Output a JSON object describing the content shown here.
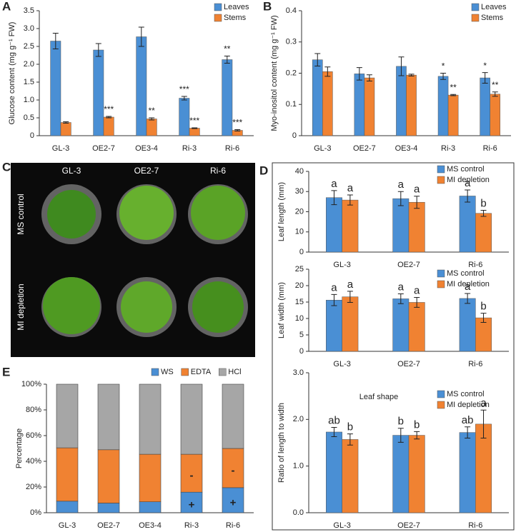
{
  "chart_data": [
    {
      "type": "bar",
      "panel": "A",
      "ylabel": "Glucose content (mg g⁻¹ FW)",
      "categories": [
        "GL-3",
        "OE2-7",
        "OE3-4",
        "Ri-3",
        "Ri-6"
      ],
      "series": [
        {
          "name": "Leaves",
          "color": "#4a8fd4",
          "values": [
            2.65,
            2.4,
            2.77,
            1.05,
            2.13
          ],
          "errors": [
            0.22,
            0.18,
            0.27,
            0.05,
            0.1
          ],
          "annotations": [
            null,
            null,
            null,
            "***",
            "**"
          ]
        },
        {
          "name": "Stems",
          "color": "#f08232",
          "values": [
            0.37,
            0.52,
            0.47,
            0.21,
            0.15
          ],
          "errors": [
            0.02,
            0.02,
            0.03,
            0.01,
            0.02
          ],
          "annotations": [
            null,
            "***",
            "**",
            "***",
            "***"
          ]
        }
      ],
      "ylim": [
        0,
        3.5
      ],
      "yticks": [
        0,
        0.5,
        {
          "value": 1,
          "label": "1.0"
        },
        1.5,
        {
          "value": 2,
          "label": "2.0"
        },
        2.5,
        {
          "value": 3,
          "label": "3.0"
        },
        3.5
      ],
      "legend": "upper right"
    },
    {
      "type": "bar",
      "panel": "B",
      "ylabel": "Myo-inositol content (mg g⁻¹ FW)",
      "categories": [
        "GL-3",
        "OE2-7",
        "OE3-4",
        "Ri-3",
        "Ri-6"
      ],
      "series": [
        {
          "name": "Leaves",
          "color": "#4a8fd4",
          "values": [
            0.243,
            0.198,
            0.222,
            0.19,
            0.185
          ],
          "errors": [
            0.02,
            0.02,
            0.03,
            0.01,
            0.017
          ],
          "annotations": [
            null,
            null,
            null,
            "*",
            "*"
          ]
        },
        {
          "name": "Stems",
          "color": "#f08232",
          "values": [
            0.205,
            0.185,
            0.194,
            0.13,
            0.133
          ],
          "errors": [
            0.015,
            0.01,
            0.003,
            0.002,
            0.007
          ],
          "annotations": [
            null,
            null,
            null,
            "**",
            "**"
          ]
        }
      ],
      "ylim": [
        0,
        0.4
      ],
      "yticks": [
        0,
        0.1,
        0.2,
        0.3,
        0.4
      ],
      "legend": "upper right"
    },
    {
      "type": "bar",
      "panel": "D",
      "ylabel": "Leaf  length (mm)",
      "categories": [
        "GL-3",
        "OE2-7",
        "Ri-6"
      ],
      "series": [
        {
          "name": "MS control",
          "color": "#4a8fd4",
          "values": [
            27,
            26.5,
            27.8
          ],
          "errors": [
            3.5,
            3.5,
            3
          ],
          "annotations": [
            "a",
            "a",
            "a"
          ]
        },
        {
          "name": "MI depletion",
          "color": "#f08232",
          "values": [
            25.8,
            24.7,
            19.2
          ],
          "errors": [
            2.5,
            3,
            1.5
          ],
          "annotations": [
            "a",
            "a",
            "b"
          ]
        }
      ],
      "ylim": [
        0,
        40
      ],
      "yticks": [
        0,
        10,
        20,
        30,
        40
      ],
      "legend": "upper right"
    },
    {
      "type": "bar",
      "ylabel": "Leaf width (mm)",
      "categories": [
        "GL-3",
        "OE2-7",
        "Ri-6"
      ],
      "series": [
        {
          "name": "MS control",
          "color": "#4a8fd4",
          "values": [
            15.6,
            16,
            16.1
          ],
          "errors": [
            1.7,
            1.5,
            1.5
          ],
          "annotations": [
            "a",
            "a",
            "a"
          ]
        },
        {
          "name": "MI depletion",
          "color": "#f08232",
          "values": [
            16.6,
            14.9,
            10.2
          ],
          "errors": [
            1.7,
            1.5,
            1.4
          ],
          "annotations": [
            "a",
            "a",
            "b"
          ]
        }
      ],
      "ylim": [
        0,
        25
      ],
      "yticks": [
        0,
        5,
        10,
        15,
        20,
        25
      ],
      "legend": "upper right"
    },
    {
      "type": "bar",
      "subtitle": "Leaf shape",
      "ylabel": "Ratio of length to width",
      "categories": [
        "GL-3",
        "OE2-7",
        "Ri-6"
      ],
      "series": [
        {
          "name": "MS control",
          "color": "#4a8fd4",
          "values": [
            1.73,
            1.66,
            1.72
          ],
          "errors": [
            0.1,
            0.15,
            0.12
          ],
          "annotations": [
            "ab",
            "b",
            "ab"
          ]
        },
        {
          "name": "MI depletion",
          "color": "#f08232",
          "values": [
            1.57,
            1.66,
            1.9
          ],
          "errors": [
            0.12,
            0.08,
            0.3
          ],
          "annotations": [
            "b",
            "b",
            "a"
          ]
        }
      ],
      "ylim": [
        0,
        3
      ],
      "yticks": [
        {
          "value": 0,
          "label": "0.0"
        },
        {
          "value": 1,
          "label": "1.0"
        },
        {
          "value": 2,
          "label": "2.0"
        },
        {
          "value": 3,
          "label": "3.0"
        }
      ],
      "legend": "upper right"
    },
    {
      "type": "stacked_bar",
      "panel": "E",
      "ylabel": "Percentage",
      "categories": [
        "GL-3",
        "OE2-7",
        "OE3-4",
        "Ri-3",
        "Ri-6"
      ],
      "series": [
        {
          "name": "WS",
          "color": "#4a8fd4",
          "values": [
            9,
            7.5,
            8.5,
            16,
            19.5
          ],
          "annotations": [
            null,
            null,
            null,
            "+",
            "+"
          ]
        },
        {
          "name": "EDTA",
          "color": "#f08232",
          "values": [
            41.5,
            41.5,
            37,
            29.5,
            30.5
          ],
          "annotations": [
            null,
            null,
            null,
            "-",
            "-"
          ]
        },
        {
          "name": "HCl",
          "color": "#a6a6a6",
          "values": [
            49.5,
            51,
            54.5,
            54.5,
            50
          ]
        }
      ],
      "ylim": [
        0,
        100
      ],
      "yticks": [
        {
          "value": 0,
          "label": "0%"
        },
        {
          "value": 20,
          "label": "20%"
        },
        {
          "value": 40,
          "label": "40%"
        },
        {
          "value": 60,
          "label": "60%"
        },
        {
          "value": 80,
          "label": "80%"
        },
        {
          "value": 100,
          "label": "100%"
        }
      ],
      "legend": "top"
    }
  ],
  "photo": {
    "panel": "C",
    "columns": [
      "GL-3",
      "OE2-7",
      "Ri-6"
    ],
    "rows": [
      "MS control",
      "MI depletion"
    ]
  }
}
